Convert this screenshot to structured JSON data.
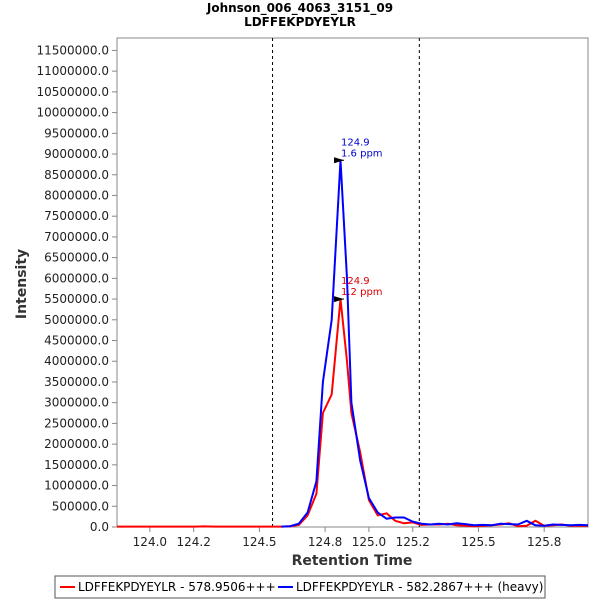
{
  "chart_data": {
    "type": "line",
    "title": "Johnson_006_4063_3151_09",
    "subtitle": "LDFFEKPDYEYLR",
    "xlabel": "Retention Time",
    "ylabel": "Intensity",
    "xlim": [
      123.85,
      126.0
    ],
    "ylim": [
      0,
      11800000
    ],
    "x_ticks": [
      124.0,
      124.2,
      124.5,
      124.8,
      125.0,
      125.2,
      125.5,
      125.8
    ],
    "x_tick_labels": [
      "124.0",
      "124.2",
      "124.5",
      "124.8",
      "125.0",
      "125.2",
      "125.5",
      "125.8"
    ],
    "y_ticks": [
      0,
      500000,
      1000000,
      1500000,
      2000000,
      2500000,
      3000000,
      3500000,
      4000000,
      4500000,
      5000000,
      5500000,
      6000000,
      6500000,
      7000000,
      7500000,
      8000000,
      8500000,
      9000000,
      9500000,
      10000000,
      10500000,
      11000000,
      11500000
    ],
    "y_tick_labels": [
      "0.0",
      "500000.0",
      "1000000.0",
      "1500000.0",
      "2000000.0",
      "2500000.0",
      "3000000.0",
      "3500000.0",
      "4000000.0",
      "4500000.0",
      "5000000.0",
      "5500000.0",
      "6000000.0",
      "6500000.0",
      "7000000.0",
      "7500000.0",
      "8000000.0",
      "8500000.0",
      "9000000.0",
      "9500000.0",
      "10000000.0",
      "10500000.0",
      "11000000.0",
      "11500000.0"
    ],
    "vlines": [
      124.56,
      125.23
    ],
    "series": [
      {
        "name": "LDFFEKPDYEYLR - 578.9506+++",
        "color": "#ff0000",
        "x": [
          123.85,
          124.0,
          124.1,
          124.2,
          124.25,
          124.3,
          124.4,
          124.5,
          124.6,
          124.64,
          124.68,
          124.72,
          124.76,
          124.79,
          124.83,
          124.87,
          124.9,
          124.92,
          124.96,
          125.0,
          125.04,
          125.08,
          125.12,
          125.16,
          125.2,
          125.24,
          125.28,
          125.32,
          125.36,
          125.4,
          125.44,
          125.48,
          125.52,
          125.56,
          125.6,
          125.64,
          125.68,
          125.72,
          125.76,
          125.8,
          125.84,
          125.88,
          125.92,
          125.96,
          126.0
        ],
        "values": [
          10000,
          10000,
          10000,
          10000,
          15000,
          10000,
          10000,
          10000,
          10000,
          20000,
          50000,
          280000,
          800000,
          2750000,
          3200000,
          5500000,
          4000000,
          2750000,
          1800000,
          650000,
          280000,
          330000,
          150000,
          90000,
          110000,
          50000,
          60000,
          60000,
          80000,
          40000,
          30000,
          20000,
          30000,
          40000,
          60000,
          90000,
          20000,
          30000,
          150000,
          30000,
          40000,
          60000,
          30000,
          30000,
          30000
        ]
      },
      {
        "name": "LDFFEKPDYEYLR - 582.2867+++ (heavy)",
        "color": "#0000ff",
        "x": [
          124.6,
          124.64,
          124.68,
          124.72,
          124.76,
          124.79,
          124.83,
          124.87,
          124.9,
          124.92,
          124.96,
          125.0,
          125.04,
          125.08,
          125.12,
          125.16,
          125.2,
          125.24,
          125.28,
          125.32,
          125.36,
          125.4,
          125.44,
          125.48,
          125.52,
          125.56,
          125.6,
          125.64,
          125.68,
          125.72,
          125.76,
          125.8,
          125.84,
          125.88,
          125.92,
          125.96,
          126.0
        ],
        "values": [
          10000,
          20000,
          80000,
          350000,
          1100000,
          3500000,
          5000000,
          8850000,
          6000000,
          3000000,
          1600000,
          700000,
          350000,
          200000,
          230000,
          230000,
          130000,
          80000,
          60000,
          80000,
          60000,
          90000,
          70000,
          40000,
          50000,
          40000,
          80000,
          70000,
          60000,
          150000,
          40000,
          30000,
          60000,
          50000,
          40000,
          50000,
          40000
        ]
      }
    ],
    "annotations": [
      {
        "x": 124.9,
        "y": 8850000,
        "line1": "124.9",
        "line2": "1.6 ppm",
        "color": "#0000cc"
      },
      {
        "x": 124.9,
        "y": 5500000,
        "line1": "124.9",
        "line2": "1.2 ppm",
        "color": "#dd0000"
      }
    ],
    "legend_position": "bottom"
  }
}
